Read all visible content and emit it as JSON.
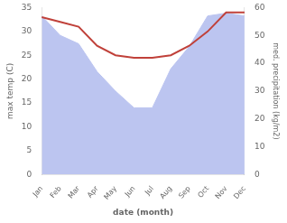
{
  "chart_data": {
    "type": "line",
    "xlabel": "date (month)",
    "ylabel": "max temp (C)",
    "y2label": "med. precipitation (kg/m2)",
    "categories": [
      "Jan",
      "Feb",
      "Mar",
      "Apr",
      "May",
      "Jun",
      "Jul",
      "Aug",
      "Sep",
      "Oct",
      "Nov",
      "Dec"
    ],
    "series": [
      {
        "type": "line",
        "color": "#c0413a",
        "values": [
          33,
          32,
          31,
          27,
          25,
          24.5,
          24.5,
          25,
          27,
          30,
          34,
          34
        ]
      },
      {
        "type": "area",
        "color": "#bcc5f0",
        "axis": "y2",
        "values": [
          57,
          50,
          47,
          37,
          30,
          24,
          24,
          38,
          46,
          57,
          58,
          57
        ]
      }
    ],
    "ylim": [
      0,
      35
    ],
    "yticks": [
      0,
      5,
      10,
      15,
      20,
      25,
      30,
      35
    ],
    "y2lim": [
      0,
      60
    ],
    "y2ticks": [
      0,
      10,
      20,
      30,
      40,
      50,
      60
    ],
    "grid": false
  }
}
